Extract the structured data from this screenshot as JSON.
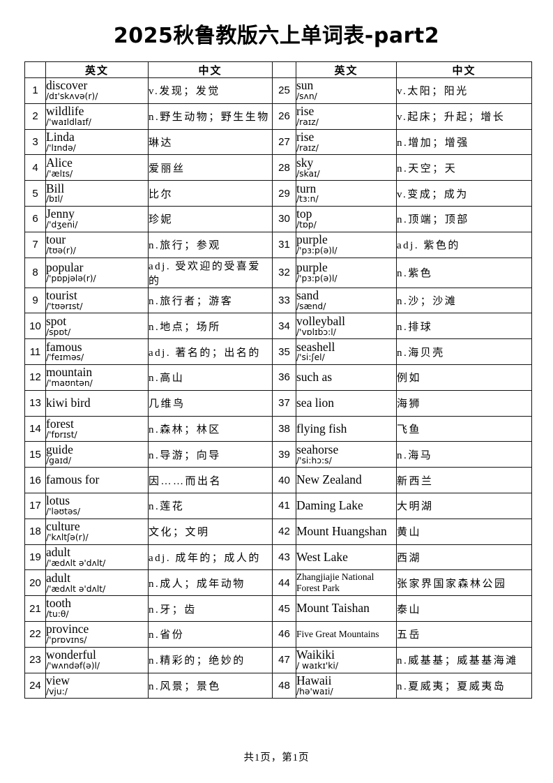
{
  "title": "2025秋鲁教版六上单词表-part2",
  "footer": "共1页，第1页",
  "table": {
    "headers": {
      "english": "英文",
      "chinese": "中文"
    },
    "left_rows": [
      {
        "no": "1",
        "word": "discover",
        "phonetic": "/dɪ'skʌvə(r)/",
        "meaning": "v.发现；发觉"
      },
      {
        "no": "2",
        "word": "wildlife",
        "phonetic": "/'waɪldlaɪf/",
        "meaning": "n.野生动物；野生生物"
      },
      {
        "no": "3",
        "word": "Linda",
        "phonetic": "/'lɪndə/",
        "meaning": "琳达"
      },
      {
        "no": "4",
        "word": "Alice",
        "phonetic": "/'ælɪs/",
        "meaning": "爱丽丝"
      },
      {
        "no": "5",
        "word": "Bill",
        "phonetic": "/bɪl/",
        "meaning": "比尔"
      },
      {
        "no": "6",
        "word": "Jenny",
        "phonetic": "/'dʒeni/",
        "meaning": "珍妮"
      },
      {
        "no": "7",
        "word": "tour",
        "phonetic": "/tʊə(r)/",
        "meaning": "n.旅行；参观"
      },
      {
        "no": "8",
        "word": "popular",
        "phonetic": "/'pɒpjələ(r)/",
        "meaning": "adj. 受欢迎的受喜爱的"
      },
      {
        "no": "9",
        "word": "tourist",
        "phonetic": "/'tʊərɪst/",
        "meaning": "n.旅行者；游客"
      },
      {
        "no": "10",
        "word": "spot",
        "phonetic": "/spɒt/",
        "meaning": "n.地点；场所"
      },
      {
        "no": "11",
        "word": "famous",
        "phonetic": "/'feɪməs/",
        "meaning": "adj. 著名的；出名的"
      },
      {
        "no": "12",
        "word": "mountain",
        "phonetic": "/'maʊntən/",
        "meaning": "n.高山"
      },
      {
        "no": "13",
        "word": "kiwi bird",
        "phonetic": "",
        "meaning": "几维鸟"
      },
      {
        "no": "14",
        "word": "forest",
        "phonetic": "/'fɒrɪst/",
        "meaning": "n.森林；林区"
      },
      {
        "no": "15",
        "word": "guide",
        "phonetic": "/gaɪd/",
        "meaning": "n.导游；向导"
      },
      {
        "no": "16",
        "word": "famous for",
        "phonetic": "",
        "meaning": "因……而出名"
      },
      {
        "no": "17",
        "word": "lotus",
        "phonetic": "/'ləʊtəs/",
        "meaning": "n.莲花"
      },
      {
        "no": "18",
        "word": "culture",
        "phonetic": "/'kʌltʃə(r)/",
        "meaning": "文化；文明"
      },
      {
        "no": "19",
        "word": "adult",
        "phonetic": "/'ædʌlt ə'dʌlt/",
        "meaning": "adj. 成年的；成人的"
      },
      {
        "no": "20",
        "word": "adult",
        "phonetic": "/'ædʌlt ə'dʌlt/",
        "meaning": "n.成人；成年动物"
      },
      {
        "no": "21",
        "word": "tooth",
        "phonetic": "/tu:θ/",
        "meaning": "n.牙；齿"
      },
      {
        "no": "22",
        "word": "province",
        "phonetic": "/'prɒvɪns/",
        "meaning": "n.省份"
      },
      {
        "no": "23",
        "word": "wonderful",
        "phonetic": "/'wʌndəf(ə)l/",
        "meaning": "n.精彩的；绝妙的"
      },
      {
        "no": "24",
        "word": "view",
        "phonetic": "/vju:/",
        "meaning": "n.风景；景色"
      }
    ],
    "right_rows": [
      {
        "no": "25",
        "word": "sun",
        "phonetic": "/sʌn/",
        "meaning": "v.太阳；阳光"
      },
      {
        "no": "26",
        "word": "rise",
        "phonetic": "/raɪz/",
        "meaning": "v.起床；升起；增长"
      },
      {
        "no": "27",
        "word": "rise",
        "phonetic": "/raɪz/",
        "meaning": "n.增加；增强"
      },
      {
        "no": "28",
        "word": "sky",
        "phonetic": "/skaɪ/",
        "meaning": "n.天空；天"
      },
      {
        "no": "29",
        "word": "turn",
        "phonetic": "/tɜ:n/",
        "meaning": "v.变成；成为"
      },
      {
        "no": "30",
        "word": "top",
        "phonetic": "/tɒp/",
        "meaning": "n.顶端；顶部"
      },
      {
        "no": "31",
        "word": "purple",
        "phonetic": "/'pɜ:p(ə)l/",
        "meaning": "adj. 紫色的"
      },
      {
        "no": "32",
        "word": "purple",
        "phonetic": "/'pɜ:p(ə)l/",
        "meaning": "n.紫色"
      },
      {
        "no": "33",
        "word": "sand",
        "phonetic": "/sænd/",
        "meaning": "n.沙；沙滩"
      },
      {
        "no": "34",
        "word": "volleyball",
        "phonetic": "/'vɒlɪbɔ:l/",
        "meaning": "n.排球"
      },
      {
        "no": "35",
        "word": "seashell",
        "phonetic": "/'si:ʃel/",
        "meaning": "n.海贝壳"
      },
      {
        "no": "36",
        "word": "such as",
        "phonetic": "",
        "meaning": "例如"
      },
      {
        "no": "37",
        "word": "sea lion",
        "phonetic": "",
        "meaning": "海狮"
      },
      {
        "no": "38",
        "word": "flying fish",
        "phonetic": "",
        "meaning": "飞鱼"
      },
      {
        "no": "39",
        "word": "seahorse",
        "phonetic": "/'si:hɔ:s/",
        "meaning": "n.海马"
      },
      {
        "no": "40",
        "word": "New Zealand",
        "phonetic": "",
        "meaning": "新西兰"
      },
      {
        "no": "41",
        "word": "Daming Lake",
        "phonetic": "",
        "meaning": "大明湖"
      },
      {
        "no": "42",
        "word": "Mount Huangshan",
        "phonetic": "",
        "meaning": "黄山"
      },
      {
        "no": "43",
        "word": "West Lake",
        "phonetic": "",
        "meaning": "西湖"
      },
      {
        "no": "44",
        "word": "Zhangjiajie National Forest Park",
        "phonetic": "",
        "meaning": "张家界国家森林公园"
      },
      {
        "no": "45",
        "word": "Mount Taishan",
        "phonetic": "",
        "meaning": "泰山"
      },
      {
        "no": "46",
        "word": "Five Great Mountains",
        "phonetic": "",
        "meaning": "五岳"
      },
      {
        "no": "47",
        "word": "Waikiki",
        "phonetic": "/ waɪkɪ'ki/",
        "meaning": "n.威基基；威基基海滩"
      },
      {
        "no": "48",
        "word": "Hawaii",
        "phonetic": "/hə'waɪi/",
        "meaning": "n.夏威夷；夏威夷岛"
      }
    ]
  }
}
